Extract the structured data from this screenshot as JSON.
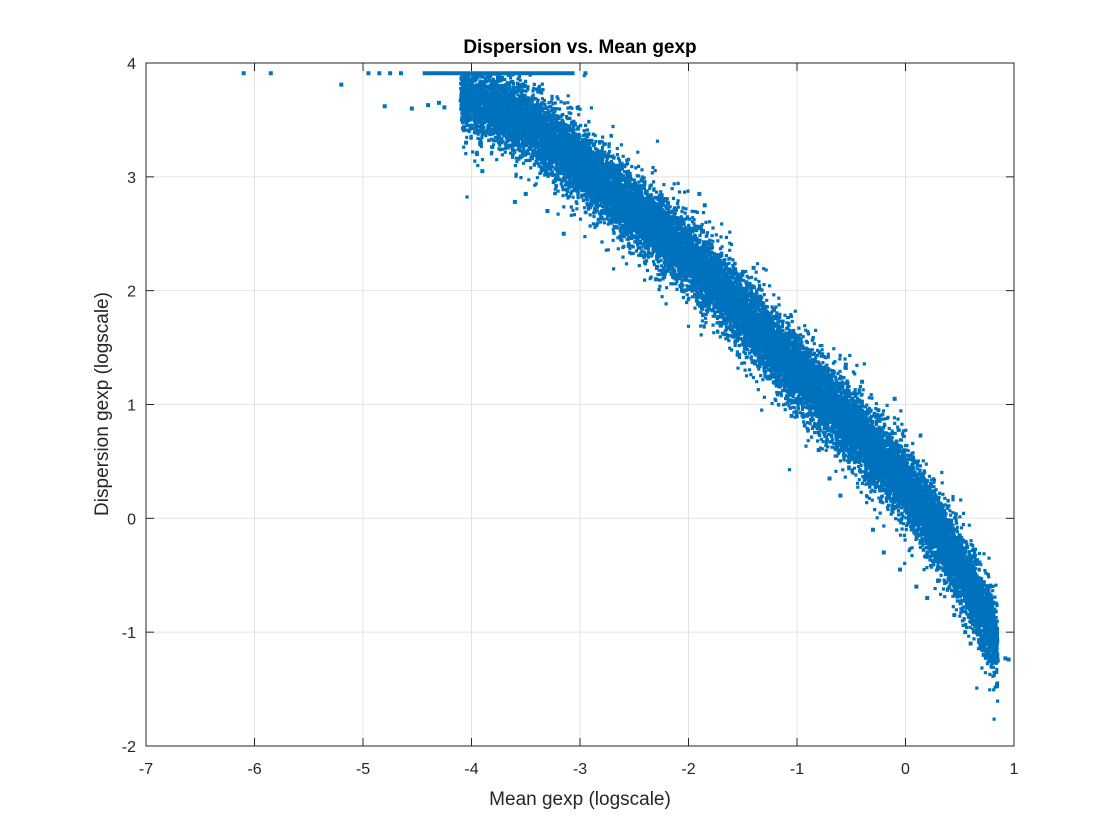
{
  "chart_data": {
    "type": "scatter",
    "title": "Dispersion vs. Mean gexp",
    "xlabel": "Mean gexp (logscale)",
    "ylabel": "Dispersion gexp (logscale)",
    "xlim": [
      -7,
      1
    ],
    "ylim": [
      -2,
      4
    ],
    "xticks": [
      -7,
      -6,
      -5,
      -4,
      -3,
      -2,
      -1,
      0,
      1
    ],
    "yticks": [
      -2,
      -1,
      0,
      1,
      2,
      3,
      4
    ],
    "grid": true,
    "legend": "none",
    "marker_color": "#0072BD",
    "series": [
      {
        "points_outliers": [
          [
            -6.1,
            3.91
          ],
          [
            -5.85,
            3.91
          ],
          [
            -5.2,
            3.81
          ],
          [
            -4.95,
            3.91
          ],
          [
            -4.85,
            3.91
          ],
          [
            -4.75,
            3.91
          ],
          [
            -4.65,
            3.91
          ],
          [
            -4.8,
            3.62
          ],
          [
            -4.55,
            3.6
          ],
          [
            -4.4,
            3.63
          ],
          [
            -4.3,
            3.65
          ],
          [
            -4.25,
            3.61
          ],
          [
            -4.1,
            3.67
          ],
          [
            -4.05,
            3.3
          ],
          [
            -3.95,
            3.2
          ],
          [
            -3.9,
            3.05
          ],
          [
            -4.0,
            3.45
          ],
          [
            -3.6,
            2.78
          ],
          [
            -3.5,
            2.85
          ],
          [
            -3.3,
            2.7
          ],
          [
            -3.15,
            2.5
          ],
          [
            -3.05,
            2.9
          ],
          [
            -2.95,
            3.91
          ],
          [
            -2.55,
            2.4
          ],
          [
            -2.4,
            2.25
          ],
          [
            -2.3,
            2.1
          ],
          [
            -1.9,
            2.85
          ],
          [
            -1.85,
            2.75
          ],
          [
            -1.7,
            1.8
          ],
          [
            -1.55,
            1.6
          ],
          [
            -1.4,
            2.2
          ],
          [
            -1.3,
            1.3
          ],
          [
            -1.15,
            1.1
          ],
          [
            -1.05,
            0.9
          ],
          [
            -1.0,
            1.6
          ],
          [
            -0.9,
            1.45
          ],
          [
            -0.8,
            0.6
          ],
          [
            -0.7,
            0.35
          ],
          [
            -0.6,
            0.2
          ],
          [
            -0.55,
            1.35
          ],
          [
            -0.4,
            1.2
          ],
          [
            -0.3,
            -0.1
          ],
          [
            -0.25,
            0.95
          ],
          [
            -0.2,
            -0.3
          ],
          [
            -0.15,
            0.5
          ],
          [
            -0.1,
            1.05
          ],
          [
            -0.05,
            -0.45
          ],
          [
            0.05,
            0.55
          ],
          [
            0.1,
            -0.6
          ],
          [
            0.2,
            -0.7
          ],
          [
            0.3,
            -0.55
          ],
          [
            0.35,
            -0.4
          ],
          [
            0.45,
            -0.85
          ],
          [
            0.5,
            -0.15
          ],
          [
            0.55,
            -1.0
          ],
          [
            0.6,
            -1.1
          ],
          [
            0.65,
            -0.65
          ],
          [
            0.7,
            -1.05
          ],
          [
            0.72,
            -1.2
          ],
          [
            0.75,
            -1.15
          ],
          [
            0.78,
            -1.22
          ],
          [
            0.85,
            -1.25
          ],
          [
            0.95,
            -1.24
          ],
          [
            0.92,
            -1.23
          ],
          [
            0.8,
            -1.1
          ]
        ],
        "cap_line": {
          "x_from": -4.45,
          "x_to": -3.05,
          "y": 3.91
        },
        "band": {
          "x_range": [
            -4.1,
            0.85
          ],
          "centerline": [
            [
              -4.1,
              3.7
            ],
            [
              -3.5,
              3.5
            ],
            [
              -3.0,
              3.1
            ],
            [
              -2.5,
              2.7
            ],
            [
              -2.0,
              2.3
            ],
            [
              -1.5,
              1.8
            ],
            [
              -1.0,
              1.3
            ],
            [
              -0.5,
              0.8
            ],
            [
              0.0,
              0.3
            ],
            [
              0.3,
              -0.1
            ],
            [
              0.6,
              -0.6
            ],
            [
              0.85,
              -1.1
            ]
          ],
          "point_count": 20000,
          "seed": 42
        }
      }
    ]
  }
}
